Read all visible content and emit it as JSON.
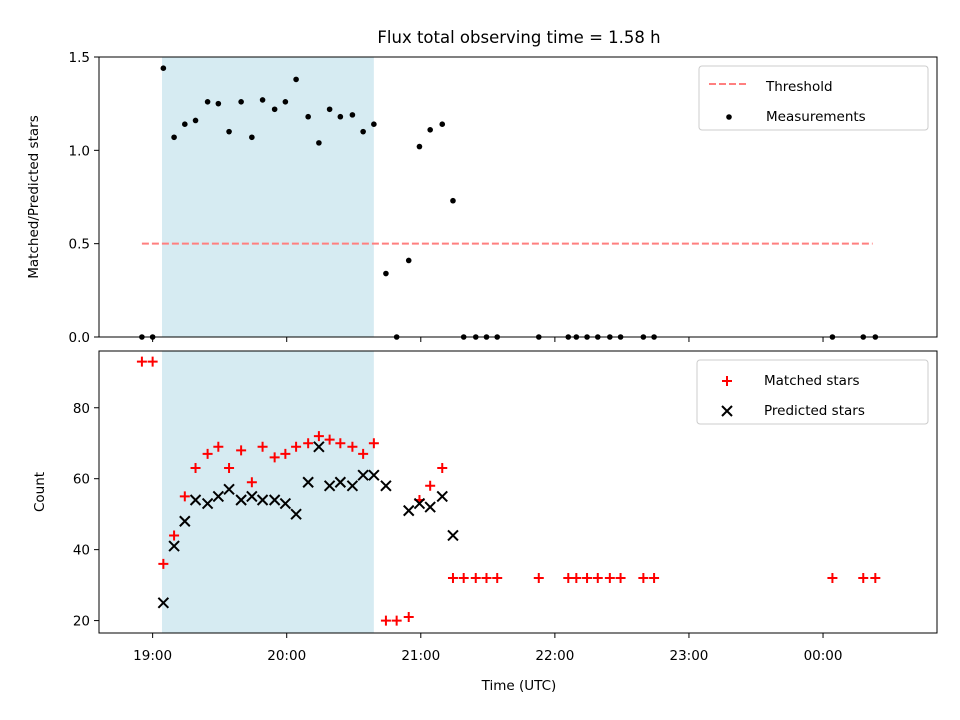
{
  "title": "Flux total observing time = 1.58 h",
  "xlabel": "Time (UTC)",
  "x_ticks": [
    "19:00",
    "20:00",
    "21:00",
    "22:00",
    "23:00",
    "00:00"
  ],
  "colors": {
    "shade": "#add8e6",
    "threshold": "#ff7f7f",
    "measurement": "#000000",
    "matched": "#ff0000",
    "predicted": "#000000"
  },
  "chart_data": [
    {
      "type": "scatter",
      "ylabel": "Matched/Predicted stars",
      "y_ticks": [
        "0.0",
        "0.5",
        "1.0",
        "1.5"
      ],
      "ylim": [
        0,
        1.5
      ],
      "xlim_hours": [
        18.6,
        24.85
      ],
      "shaded_interval_hours": [
        19.07,
        20.65
      ],
      "threshold": {
        "label": "Threshold",
        "value": 0.5,
        "x_range_hours": [
          18.92,
          24.37
        ]
      },
      "legend": {
        "position": "top-right",
        "entries": [
          "Threshold",
          "Measurements"
        ]
      },
      "series": [
        {
          "name": "Measurements",
          "x": [
            18.92,
            19.0,
            19.08,
            19.16,
            19.24,
            19.32,
            19.41,
            19.49,
            19.57,
            19.66,
            19.74,
            19.82,
            19.91,
            19.99,
            20.07,
            20.16,
            20.24,
            20.32,
            20.4,
            20.49,
            20.57,
            20.65,
            20.74,
            20.82,
            20.91,
            20.99,
            21.07,
            21.16,
            21.24,
            21.32,
            21.41,
            21.49,
            21.57,
            21.88,
            22.1,
            22.16,
            22.24,
            22.32,
            22.41,
            22.49,
            22.66,
            22.74,
            24.07,
            24.3,
            24.39
          ],
          "y": [
            0,
            0,
            1.44,
            1.07,
            1.14,
            1.16,
            1.26,
            1.25,
            1.1,
            1.26,
            1.07,
            1.27,
            1.22,
            1.26,
            1.38,
            1.18,
            1.04,
            1.22,
            1.18,
            1.19,
            1.1,
            1.14,
            0.34,
            0,
            0.41,
            1.02,
            1.11,
            1.14,
            0.73,
            0,
            0,
            0,
            0,
            0,
            0,
            0,
            0,
            0,
            0,
            0,
            0,
            0,
            0,
            0,
            0
          ]
        }
      ]
    },
    {
      "type": "scatter",
      "ylabel": "Count",
      "y_ticks": [
        "20",
        "40",
        "60",
        "80"
      ],
      "ylim": [
        16.5,
        96
      ],
      "xlim_hours": [
        18.6,
        24.85
      ],
      "shaded_interval_hours": [
        19.07,
        20.65
      ],
      "legend": {
        "position": "top-right",
        "entries": [
          "Matched stars",
          "Predicted stars"
        ]
      },
      "series": [
        {
          "name": "Matched stars",
          "x": [
            18.92,
            19.0,
            19.08,
            19.16,
            19.24,
            19.32,
            19.41,
            19.49,
            19.57,
            19.66,
            19.74,
            19.82,
            19.91,
            19.99,
            20.07,
            20.16,
            20.24,
            20.32,
            20.4,
            20.49,
            20.57,
            20.65,
            20.74,
            20.82,
            20.91,
            20.99,
            21.07,
            21.16,
            21.24,
            21.32,
            21.41,
            21.49,
            21.57,
            21.88,
            22.1,
            22.16,
            22.24,
            22.32,
            22.41,
            22.49,
            22.66,
            22.74,
            24.07,
            24.3,
            24.39
          ],
          "y": [
            93,
            93,
            36,
            44,
            55,
            63,
            67,
            69,
            63,
            68,
            59,
            69,
            66,
            67,
            69,
            70,
            72,
            71,
            70,
            69,
            67,
            70,
            20,
            20,
            21,
            54,
            58,
            63,
            32,
            32,
            32,
            32,
            32,
            32,
            32,
            32,
            32,
            32,
            32,
            32,
            32,
            32,
            32,
            32,
            32
          ]
        },
        {
          "name": "Predicted stars",
          "x": [
            19.08,
            19.16,
            19.24,
            19.32,
            19.41,
            19.49,
            19.57,
            19.66,
            19.74,
            19.82,
            19.91,
            19.99,
            20.07,
            20.16,
            20.24,
            20.32,
            20.4,
            20.49,
            20.57,
            20.65,
            20.74,
            20.91,
            20.99,
            21.07,
            21.16,
            21.24
          ],
          "y": [
            25,
            41,
            48,
            54,
            53,
            55,
            57,
            54,
            55,
            54,
            54,
            53,
            50,
            59,
            69,
            58,
            59,
            58,
            61,
            61,
            58,
            51,
            53,
            52,
            55,
            44
          ]
        }
      ]
    }
  ]
}
